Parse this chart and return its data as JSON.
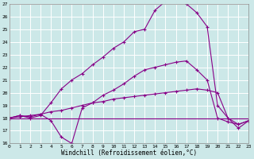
{
  "xlabel": "Windchill (Refroidissement éolien,°C)",
  "bg_color": "#cce8e8",
  "line_color": "#880088",
  "grid_color": "#ffffff",
  "xmin": 0,
  "xmax": 23,
  "ymin": 16,
  "ymax": 27,
  "series1_x": [
    0,
    1,
    2,
    3,
    4,
    5,
    6,
    7,
    8,
    9,
    10,
    11,
    12,
    13,
    14,
    15,
    16,
    17,
    18,
    19,
    20,
    21,
    22,
    23
  ],
  "series1_y": [
    18,
    18,
    18,
    18,
    18,
    18,
    18,
    18,
    18,
    18,
    18,
    18,
    18,
    18,
    18,
    18,
    18,
    18,
    18,
    18,
    18,
    18,
    18,
    18
  ],
  "series2_x": [
    0,
    1,
    2,
    3,
    4,
    5,
    6,
    7,
    8,
    9,
    10,
    11,
    12,
    13,
    14,
    15,
    16,
    17,
    18,
    19,
    20,
    21,
    22,
    23
  ],
  "series2_y": [
    18.0,
    18.1,
    18.2,
    18.3,
    18.5,
    18.6,
    18.8,
    19.0,
    19.2,
    19.3,
    19.5,
    19.6,
    19.7,
    19.8,
    19.9,
    20.0,
    20.1,
    20.2,
    20.3,
    20.2,
    20.0,
    18.0,
    17.5,
    17.8
  ],
  "series3_x": [
    0,
    1,
    2,
    3,
    4,
    5,
    6,
    7,
    8,
    9,
    10,
    11,
    12,
    13,
    14,
    15,
    16,
    17,
    18,
    19,
    20,
    21,
    22,
    23
  ],
  "series3_y": [
    18.0,
    18.2,
    18.1,
    18.3,
    17.8,
    16.5,
    16.0,
    18.8,
    19.2,
    19.8,
    20.2,
    20.7,
    21.3,
    21.8,
    22.0,
    22.2,
    22.4,
    22.5,
    21.8,
    21.0,
    18.0,
    17.7,
    17.5,
    17.8
  ],
  "series4_x": [
    0,
    1,
    2,
    3,
    4,
    5,
    6,
    7,
    8,
    9,
    10,
    11,
    12,
    13,
    14,
    15,
    16,
    17,
    18,
    19,
    20,
    21,
    22,
    23
  ],
  "series4_y": [
    18.0,
    18.2,
    18.0,
    18.2,
    19.2,
    20.3,
    21.0,
    21.5,
    22.2,
    22.8,
    23.5,
    24.0,
    24.8,
    25.0,
    26.5,
    27.2,
    27.2,
    27.0,
    26.3,
    25.2,
    19.0,
    18.0,
    17.2,
    17.8
  ]
}
